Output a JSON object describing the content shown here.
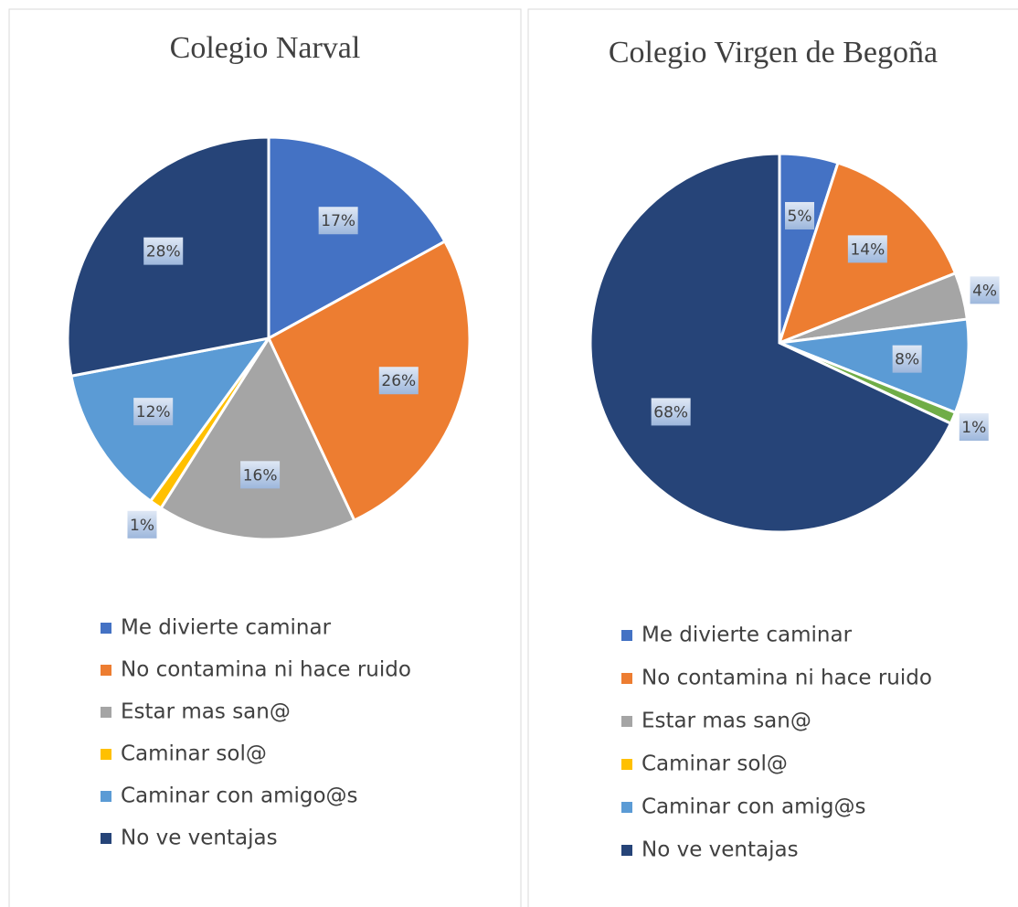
{
  "chart_data": [
    {
      "type": "pie",
      "title": "Colegio Narval",
      "values": [
        17,
        26,
        16,
        1,
        12,
        28
      ],
      "value_labels": [
        "17%",
        "26%",
        "16%",
        "1%",
        "12%",
        "28%"
      ],
      "colors": [
        "#4472c4",
        "#ed7d31",
        "#a5a5a5",
        "#ffc000",
        "#5b9bd5",
        "#264478"
      ],
      "legend": [
        {
          "name": "Me divierte caminar",
          "color": "#4472c4"
        },
        {
          "name": "No contamina ni hace ruido",
          "color": "#ed7d31"
        },
        {
          "name": "Estar mas san@",
          "color": "#a5a5a5"
        },
        {
          "name": "Caminar sol@",
          "color": "#ffc000"
        },
        {
          "name": "Caminar con amigo@s",
          "color": "#5b9bd5"
        },
        {
          "name": "No ve ventajas",
          "color": "#264478"
        }
      ]
    },
    {
      "type": "pie",
      "title": "Colegio Virgen de Begoña",
      "values": [
        5,
        14,
        4,
        8,
        1,
        68
      ],
      "value_labels": [
        "5%",
        "14%",
        "4%",
        "8%",
        "1%",
        "68%"
      ],
      "colors": [
        "#4472c4",
        "#ed7d31",
        "#a5a5a5",
        "#5b9bd5",
        "#70ad47",
        "#264478"
      ],
      "legend": [
        {
          "name": "Me divierte caminar",
          "color": "#4472c4"
        },
        {
          "name": "No contamina ni hace ruido",
          "color": "#ed7d31"
        },
        {
          "name": "Estar mas san@",
          "color": "#a5a5a5"
        },
        {
          "name": "Caminar sol@",
          "color": "#ffc000"
        },
        {
          "name": "Caminar con amig@s",
          "color": "#5b9bd5"
        },
        {
          "name": "No ve ventajas",
          "color": "#264478"
        }
      ]
    }
  ]
}
